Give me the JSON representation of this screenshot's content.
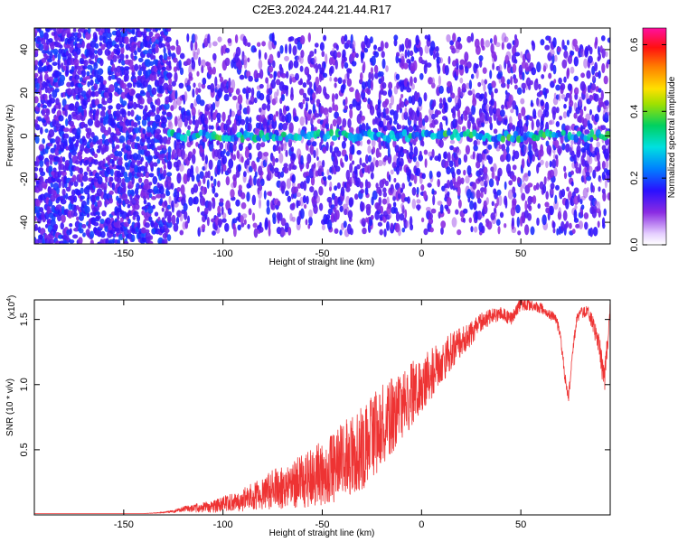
{
  "title": "C2E3.2024.244.21.44.R17",
  "chart_data": [
    {
      "type": "heatmap",
      "xlabel": "Height of straight line (km)",
      "ylabel": "Frequency (Hz)",
      "xlim": [
        -195,
        95
      ],
      "ylim": [
        -50,
        50
      ],
      "x_ticks": [
        -150,
        -100,
        -50,
        0,
        50
      ],
      "x_tick_labels": [
        "-150",
        "-100",
        "-50",
        "0",
        "50"
      ],
      "y_ticks": [
        -40,
        -20,
        0,
        20,
        40
      ],
      "y_tick_labels": [
        "-40",
        "-20",
        "0",
        "20",
        "40"
      ],
      "grid": false,
      "colorbar": {
        "label": "Normalized spectral amplitude",
        "range": [
          0.0,
          0.65
        ],
        "ticks": [
          0.0,
          0.2,
          0.4,
          0.6
        ],
        "tick_labels": [
          "0.0",
          "0.2",
          "0.4",
          "0.6"
        ],
        "colormap": "rainbow (white-violet-blue-cyan-green-yellow-orange-red-magenta)"
      },
      "features": [
        {
          "name": "Broadband noise",
          "x_range": [
            -195,
            -127
          ],
          "freq_range": [
            -50,
            50
          ],
          "amplitude": 0.12
        },
        {
          "name": "Scattered noise",
          "x_range": [
            -127,
            95
          ],
          "freq_range": [
            -45,
            45
          ],
          "amplitude": 0.08
        },
        {
          "name": "Narrow signal line",
          "x_range": [
            -127,
            95
          ],
          "freq_center": 0,
          "amplitude_peak": 0.3
        }
      ]
    },
    {
      "type": "line",
      "xlabel": "Height of straight line (km)",
      "ylabel": "SNR (10 * v/v)",
      "y_scale_label": "(x10",
      "y_scale_exponent": "4",
      "y_scale_close": ")",
      "xlim": [
        -195,
        95
      ],
      "ylim": [
        0,
        1.65
      ],
      "x_ticks": [
        -150,
        -100,
        -50,
        0,
        50
      ],
      "x_tick_labels": [
        "-150",
        "-100",
        "-50",
        "0",
        "50"
      ],
      "y_ticks": [
        0.5,
        1.0,
        1.5
      ],
      "y_tick_labels": [
        "0.5",
        "1.0",
        "1.5"
      ],
      "grid": false,
      "color": "#ee3333",
      "x": [
        -195,
        -180,
        -160,
        -140,
        -130,
        -125,
        -120,
        -115,
        -110,
        -105,
        -100,
        -95,
        -90,
        -85,
        -80,
        -75,
        -70,
        -65,
        -60,
        -55,
        -50,
        -45,
        -40,
        -35,
        -30,
        -25,
        -20,
        -15,
        -10,
        -5,
        0,
        5,
        10,
        15,
        20,
        25,
        30,
        35,
        40,
        45,
        50,
        55,
        60,
        65,
        68,
        70,
        72,
        74,
        76,
        78,
        80,
        84,
        88,
        90,
        92,
        95
      ],
      "y": [
        0.01,
        0.01,
        0.01,
        0.01,
        0.02,
        0.03,
        0.05,
        0.06,
        0.07,
        0.08,
        0.1,
        0.12,
        0.14,
        0.18,
        0.2,
        0.24,
        0.27,
        0.3,
        0.32,
        0.36,
        0.4,
        0.44,
        0.5,
        0.55,
        0.6,
        0.7,
        0.78,
        0.85,
        0.92,
        1.0,
        1.08,
        1.15,
        1.22,
        1.3,
        1.36,
        1.42,
        1.5,
        1.54,
        1.56,
        1.52,
        1.63,
        1.62,
        1.6,
        1.55,
        1.5,
        1.38,
        1.1,
        0.92,
        1.25,
        1.5,
        1.56,
        1.58,
        1.4,
        1.3,
        1.05,
        1.6
      ],
      "noise_amplitude": [
        0,
        0,
        0,
        0,
        0.005,
        0.01,
        0.02,
        0.03,
        0.04,
        0.05,
        0.06,
        0.07,
        0.09,
        0.11,
        0.13,
        0.15,
        0.17,
        0.19,
        0.21,
        0.23,
        0.25,
        0.27,
        0.29,
        0.31,
        0.33,
        0.33,
        0.31,
        0.29,
        0.27,
        0.25,
        0.22,
        0.2,
        0.17,
        0.14,
        0.11,
        0.09,
        0.07,
        0.06,
        0.05,
        0.05,
        0.05,
        0.04,
        0.04,
        0.04,
        0.04,
        0.04,
        0.05,
        0.05,
        0.05,
        0.04,
        0.04,
        0.05,
        0.08,
        0.1,
        0.12,
        0.05
      ]
    }
  ]
}
